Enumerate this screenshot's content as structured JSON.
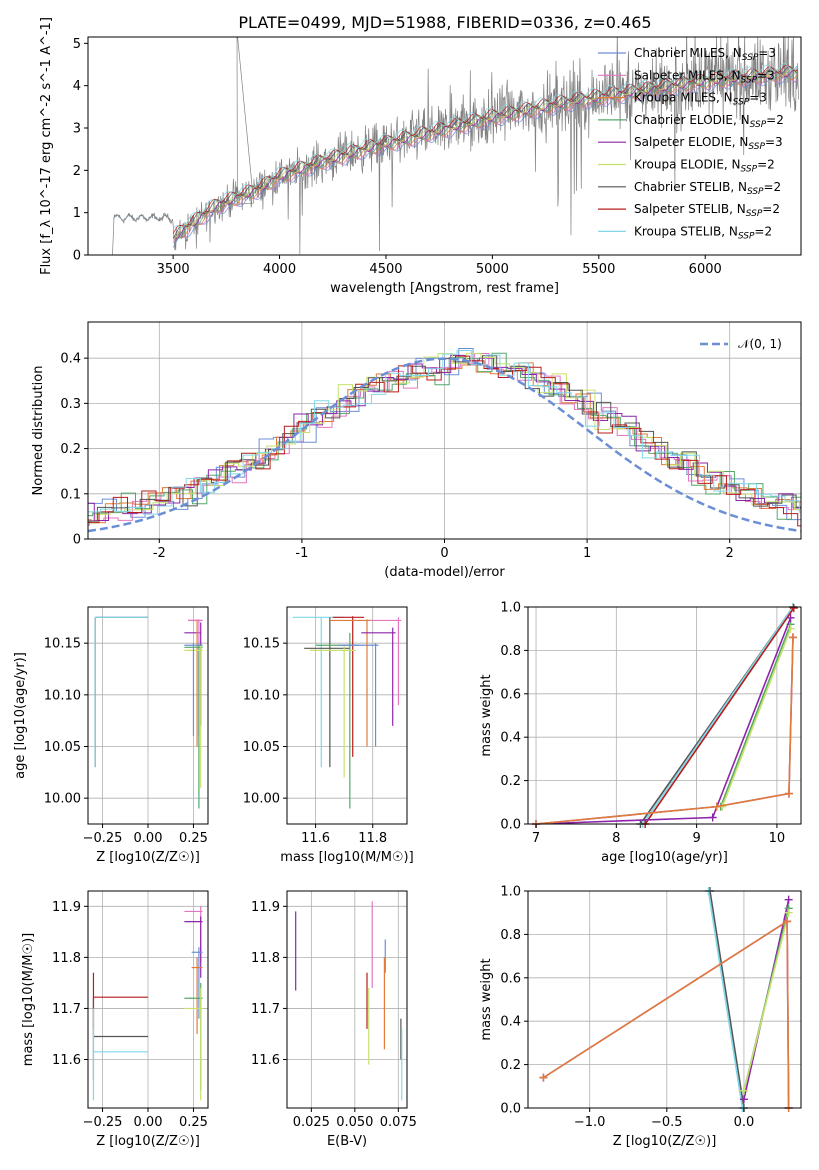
{
  "title": "PLATE=0499, MJD=51988, FIBERID=0336, z=0.465",
  "colors": {
    "Chabrier MILES": "#6b8fd6",
    "Salpeter MILES": "#e377c2",
    "Kroupa MILES": "#e07b39",
    "Chabrier ELODIE": "#55a868",
    "Salpeter ELODIE": "#8e24aa",
    "Kroupa ELODIE": "#c6e26b",
    "Chabrier STELIB": "#555555",
    "Salpeter STELIB": "#b71c1c",
    "Kroupa STELIB": "#80d8e8"
  },
  "chart_data": [
    {
      "type": "line",
      "title": "PLATE=0499, MJD=51988, FIBERID=0336, z=0.465",
      "xlabel": "wavelength [Angstrom, rest frame]",
      "ylabel": "Flux [f_λ 10^-17 erg cm^-2 s^-1 A^-1]",
      "xlim": [
        3100,
        6450
      ],
      "ylim": [
        0,
        5.15
      ],
      "xticks": [
        3500,
        4000,
        4500,
        5000,
        5500,
        6000
      ],
      "yticks": [
        0,
        1,
        2,
        3,
        4,
        5
      ],
      "data_color": "#808080",
      "legend_position": "top-right",
      "legend": [
        {
          "label": "Chabrier MILES, N",
          "sub": "SSP",
          "suffix": "=3"
        },
        {
          "label": "Salpeter MILES, N",
          "sub": "SSP",
          "suffix": "=3"
        },
        {
          "label": "Kroupa MILES, N",
          "sub": "SSP",
          "suffix": "=3"
        },
        {
          "label": "Chabrier ELODIE, N",
          "sub": "SSP",
          "suffix": "=2"
        },
        {
          "label": "Salpeter ELODIE, N",
          "sub": "SSP",
          "suffix": "=3"
        },
        {
          "label": "Kroupa ELODIE, N",
          "sub": "SSP",
          "suffix": "=2"
        },
        {
          "label": "Chabrier STELIB, N",
          "sub": "SSP",
          "suffix": "=2"
        },
        {
          "label": "Salpeter STELIB, N",
          "sub": "SSP",
          "suffix": "=2"
        },
        {
          "label": "Kroupa STELIB, N",
          "sub": "SSP",
          "suffix": "=2"
        }
      ],
      "model_trend": {
        "x": [
          3500,
          3700,
          3900,
          4000,
          4200,
          4400,
          4600,
          4800,
          5000,
          5200,
          5400,
          5600,
          5800,
          6000,
          6200,
          6400
        ],
        "y": [
          0.4,
          1.15,
          1.55,
          1.85,
          2.2,
          2.5,
          2.75,
          3.0,
          3.25,
          3.45,
          3.65,
          3.8,
          3.95,
          4.1,
          4.2,
          4.3
        ]
      }
    },
    {
      "type": "line",
      "xlabel": "(data-model)/error",
      "ylabel": "Normed distribution",
      "xlim": [
        -2.5,
        2.5
      ],
      "ylim": [
        0,
        0.48
      ],
      "xticks": [
        -2,
        -1,
        0,
        1,
        2
      ],
      "yticks": [
        0.0,
        0.1,
        0.2,
        0.3,
        0.4
      ],
      "grid": true,
      "legend_position": "top-right",
      "gaussian": {
        "label": "𝒩(0, 1)",
        "mean": 0,
        "sigma": 1,
        "color": "#6b8fd6"
      },
      "hist_bin_width": 0.1,
      "hist_center": 0.15,
      "hist_sigma": 1.1,
      "hist_amp": 0.36
    },
    {
      "type": "scatter",
      "xlabel": "Z [log10(Z/Z☉)]",
      "ylabel": "age [log10(age/yr)]",
      "xlim": [
        -0.33,
        0.33
      ],
      "ylim": [
        9.975,
        10.185
      ],
      "xticks": [
        -0.25,
        0.0,
        0.25
      ],
      "xticklabels": [
        "−0.25",
        "0.00",
        "0.25"
      ],
      "yticks": [
        10.0,
        10.05,
        10.1,
        10.15
      ],
      "yticklabels": [
        "10.00",
        "10.05",
        "10.10",
        "10.15"
      ],
      "points": [
        {
          "m": "Chabrier STELIB",
          "x": -0.29,
          "xlo": -0.29,
          "xhi": 0.0,
          "y": 10.175,
          "ylo": 10.03,
          "yhi": 10.175
        },
        {
          "m": "Kroupa STELIB",
          "x": -0.29,
          "xlo": -0.29,
          "xhi": 0.0,
          "y": 10.175,
          "ylo": 10.03,
          "yhi": 10.175
        },
        {
          "m": "Salpeter ELODIE",
          "x": 0.29,
          "xlo": 0.2,
          "xhi": 0.29,
          "y": 10.16,
          "ylo": 10.07,
          "yhi": 10.17
        },
        {
          "m": "Kroupa MILES",
          "x": 0.27,
          "xlo": 0.22,
          "xhi": 0.3,
          "y": 10.172,
          "ylo": 10.05,
          "yhi": 10.173
        },
        {
          "m": "Salpeter MILES",
          "x": 0.28,
          "xlo": 0.22,
          "xhi": 0.3,
          "y": 10.172,
          "ylo": 10.06,
          "yhi": 10.173
        },
        {
          "m": "Chabrier ELODIE",
          "x": 0.28,
          "xlo": 0.2,
          "xhi": 0.3,
          "y": 10.146,
          "ylo": 9.99,
          "yhi": 10.15
        },
        {
          "m": "Kroupa ELODIE",
          "x": 0.29,
          "xlo": 0.2,
          "xhi": 0.3,
          "y": 10.143,
          "ylo": 10.01,
          "yhi": 10.148
        },
        {
          "m": "Chabrier MILES",
          "x": 0.25,
          "xlo": 0.2,
          "xhi": 0.3,
          "y": 10.148,
          "ylo": 10.06,
          "yhi": 10.15
        }
      ]
    },
    {
      "type": "scatter",
      "xlabel": "mass [log10(M/M☉)]",
      "xlim": [
        11.5,
        11.92
      ],
      "ylim": [
        9.975,
        10.185
      ],
      "xticks": [
        11.6,
        11.8
      ],
      "xticklabels": [
        "11.6",
        "11.8"
      ],
      "yticks": [
        10.0,
        10.05,
        10.1,
        10.15
      ],
      "yticklabels": [
        "10.00",
        "10.05",
        "10.10",
        "10.15"
      ],
      "points": [
        {
          "m": "Kroupa STELIB",
          "x": 11.62,
          "xlo": 11.52,
          "xhi": 11.7,
          "y": 10.175,
          "ylo": 10.03,
          "yhi": 10.175
        },
        {
          "m": "Chabrier STELIB",
          "x": 11.65,
          "xlo": 11.56,
          "xhi": 11.72,
          "y": 10.145,
          "ylo": 10.03,
          "yhi": 10.175
        },
        {
          "m": "Salpeter STELIB",
          "x": 11.73,
          "xlo": 11.66,
          "xhi": 11.77,
          "y": 10.175,
          "ylo": 10.04,
          "yhi": 10.176
        },
        {
          "m": "Chabrier ELODIE",
          "x": 11.72,
          "xlo": 11.6,
          "xhi": 11.75,
          "y": 10.148,
          "ylo": 9.99,
          "yhi": 10.16
        },
        {
          "m": "Kroupa ELODIE",
          "x": 11.7,
          "xlo": 11.58,
          "xhi": 11.74,
          "y": 10.143,
          "ylo": 10.02,
          "yhi": 10.148
        },
        {
          "m": "Chabrier MILES",
          "x": 11.81,
          "xlo": 11.68,
          "xhi": 11.82,
          "y": 10.148,
          "ylo": 10.05,
          "yhi": 10.15
        },
        {
          "m": "Kroupa MILES",
          "x": 11.78,
          "xlo": 11.65,
          "xhi": 11.8,
          "y": 10.172,
          "ylo": 10.05,
          "yhi": 10.173
        },
        {
          "m": "Salpeter ELODIE",
          "x": 11.87,
          "xlo": 11.76,
          "xhi": 11.88,
          "y": 10.16,
          "ylo": 10.07,
          "yhi": 10.165
        },
        {
          "m": "Salpeter MILES",
          "x": 11.89,
          "xlo": 11.79,
          "xhi": 11.9,
          "y": 10.172,
          "ylo": 10.09,
          "yhi": 10.175
        }
      ]
    },
    {
      "type": "line",
      "xlabel": "age [log10(age/yr)]",
      "ylabel": "mass weight",
      "xlim": [
        6.9,
        10.3
      ],
      "ylim": [
        0,
        1.0
      ],
      "xticks": [
        7,
        8,
        9,
        10
      ],
      "yticks": [
        0.0,
        0.2,
        0.4,
        0.6,
        0.8,
        1.0
      ],
      "yticklabels": [
        "0.0",
        "0.2",
        "0.4",
        "0.6",
        "0.8",
        "1.0"
      ],
      "grid": true,
      "series": [
        {
          "m": "Chabrier STELIB",
          "x": [
            8.3,
            10.2
          ],
          "y": [
            0.0,
            1.0
          ]
        },
        {
          "m": "Kroupa STELIB",
          "x": [
            8.33,
            10.2
          ],
          "y": [
            0.0,
            1.0
          ]
        },
        {
          "m": "Salpeter STELIB",
          "x": [
            8.36,
            10.21
          ],
          "y": [
            0.0,
            0.995
          ]
        },
        {
          "m": "Chabrier ELODIE",
          "x": [
            9.3,
            10.17
          ],
          "y": [
            0.08,
            0.92
          ]
        },
        {
          "m": "Kroupa ELODIE",
          "x": [
            9.32,
            10.17
          ],
          "y": [
            0.08,
            0.9
          ]
        },
        {
          "m": "Salpeter ELODIE",
          "x": [
            7.0,
            9.2,
            10.17
          ],
          "y": [
            0.0,
            0.03,
            0.95
          ]
        },
        {
          "m": "Chabrier MILES",
          "x": [
            7.0,
            9.25,
            10.15,
            10.2
          ],
          "y": [
            0.0,
            0.08,
            0.14,
            0.86
          ]
        },
        {
          "m": "Salpeter MILES",
          "x": [
            7.0,
            9.25,
            10.15,
            10.2
          ],
          "y": [
            0.0,
            0.08,
            0.14,
            0.86
          ]
        },
        {
          "m": "Kroupa MILES",
          "x": [
            7.0,
            9.25,
            10.15,
            10.2
          ],
          "y": [
            0.0,
            0.08,
            0.14,
            0.86
          ]
        }
      ]
    },
    {
      "type": "scatter",
      "xlabel": "Z [log10(Z/Z☉)]",
      "ylabel": "mass [log10(M/M☉)]",
      "xlim": [
        -0.33,
        0.33
      ],
      "ylim": [
        11.505,
        11.93
      ],
      "xticks": [
        -0.25,
        0.0,
        0.25
      ],
      "xticklabels": [
        "−0.25",
        "0.00",
        "0.25"
      ],
      "yticks": [
        11.6,
        11.7,
        11.8,
        11.9
      ],
      "yticklabels": [
        "11.6",
        "11.7",
        "11.8",
        "11.9"
      ],
      "points": [
        {
          "m": "Salpeter STELIB",
          "x": -0.3,
          "xlo": -0.3,
          "xhi": 0.0,
          "y": 11.722,
          "ylo": 11.66,
          "yhi": 11.77
        },
        {
          "m": "Chabrier STELIB",
          "x": -0.3,
          "xlo": -0.3,
          "xhi": 0.0,
          "y": 11.645,
          "ylo": 11.56,
          "yhi": 11.72
        },
        {
          "m": "Kroupa STELIB",
          "x": -0.3,
          "xlo": -0.3,
          "xhi": 0.0,
          "y": 11.615,
          "ylo": 11.52,
          "yhi": 11.7
        },
        {
          "m": "Salpeter MILES",
          "x": 0.29,
          "xlo": 0.2,
          "xhi": 0.3,
          "y": 11.89,
          "ylo": 11.79,
          "yhi": 11.9
        },
        {
          "m": "Salpeter ELODIE",
          "x": 0.29,
          "xlo": 0.2,
          "xhi": 0.3,
          "y": 11.87,
          "ylo": 11.76,
          "yhi": 11.88
        },
        {
          "m": "Chabrier MILES",
          "x": 0.28,
          "xlo": 0.24,
          "xhi": 0.3,
          "y": 11.81,
          "ylo": 11.68,
          "yhi": 11.82
        },
        {
          "m": "Kroupa MILES",
          "x": 0.27,
          "xlo": 0.24,
          "xhi": 0.3,
          "y": 11.78,
          "ylo": 11.65,
          "yhi": 11.8
        },
        {
          "m": "Chabrier ELODIE",
          "x": 0.29,
          "xlo": 0.2,
          "xhi": 0.3,
          "y": 11.72,
          "ylo": 11.54,
          "yhi": 11.75
        },
        {
          "m": "Kroupa ELODIE",
          "x": 0.29,
          "xlo": 0.2,
          "xhi": 0.3,
          "y": 11.7,
          "ylo": 11.52,
          "yhi": 11.74
        }
      ]
    },
    {
      "type": "scatter",
      "xlabel": "E(B-V)",
      "xlim": [
        0.011,
        0.08
      ],
      "ylim": [
        11.505,
        11.93
      ],
      "xticks": [
        0.025,
        0.05,
        0.075
      ],
      "xticklabels": [
        "0.025",
        "0.050",
        "0.075"
      ],
      "yticks": [
        11.6,
        11.7,
        11.8,
        11.9
      ],
      "yticklabels": [
        "11.6",
        "11.7",
        "11.8",
        "11.9"
      ],
      "points": [
        {
          "m": "Salpeter ELODIE",
          "x": 0.016,
          "y": 11.81,
          "ylo": 11.735,
          "yhi": 11.89
        },
        {
          "m": "Salpeter STELIB",
          "x": 0.057,
          "y": 11.71,
          "ylo": 11.66,
          "yhi": 11.77
        },
        {
          "m": "Kroupa ELODIE",
          "x": 0.058,
          "y": 11.7,
          "ylo": 11.59,
          "yhi": 11.74
        },
        {
          "m": "Salpeter MILES",
          "x": 0.06,
          "y": 11.84,
          "ylo": 11.74,
          "yhi": 11.91
        },
        {
          "m": "Chabrier MILES",
          "x": 0.0675,
          "y": 11.8,
          "ylo": 11.77,
          "yhi": 11.835
        },
        {
          "m": "Kroupa MILES",
          "x": 0.067,
          "y": 11.72,
          "ylo": 11.62,
          "yhi": 11.8
        },
        {
          "m": "Chabrier STELIB",
          "x": 0.0765,
          "y": 11.64,
          "ylo": 11.6,
          "yhi": 11.68
        },
        {
          "m": "Kroupa STELIB",
          "x": 0.077,
          "y": 11.6,
          "ylo": 11.52,
          "yhi": 11.66
        }
      ]
    },
    {
      "type": "line",
      "xlabel": "Z [log10(Z/Z☉)]",
      "ylabel": "mass weight",
      "xlim": [
        -1.4,
        0.37
      ],
      "ylim": [
        0,
        1.0
      ],
      "xticks": [
        -1.0,
        -0.5,
        0.0
      ],
      "xticklabels": [
        "−1.0",
        "−0.5",
        "0.0"
      ],
      "yticks": [
        0.0,
        0.2,
        0.4,
        0.6,
        0.8,
        1.0
      ],
      "yticklabels": [
        "0.0",
        "0.2",
        "0.4",
        "0.6",
        "0.8",
        "1.0"
      ],
      "grid": true,
      "series": [
        {
          "m": "Chabrier STELIB",
          "x": [
            -0.22,
            0.0
          ],
          "y": [
            1.0,
            0.0
          ]
        },
        {
          "m": "Kroupa STELIB",
          "x": [
            -0.23,
            -0.01
          ],
          "y": [
            1.0,
            0.0
          ]
        },
        {
          "m": "Salpeter ELODIE",
          "x": [
            0.0,
            0.29
          ],
          "y": [
            0.04,
            0.96
          ]
        },
        {
          "m": "Chabrier ELODIE",
          "x": [
            0.0,
            0.29
          ],
          "y": [
            0.08,
            0.92
          ]
        },
        {
          "m": "Kroupa ELODIE",
          "x": [
            0.0,
            0.29
          ],
          "y": [
            0.08,
            0.9
          ]
        },
        {
          "m": "Chabrier MILES",
          "x": [
            -1.3,
            0.28,
            0.29
          ],
          "y": [
            0.14,
            0.86,
            0.0
          ]
        },
        {
          "m": "Salpeter MILES",
          "x": [
            -1.3,
            0.28,
            0.29
          ],
          "y": [
            0.14,
            0.86,
            0.0
          ]
        },
        {
          "m": "Kroupa MILES",
          "x": [
            -1.3,
            0.28,
            0.29
          ],
          "y": [
            0.14,
            0.86,
            0.0
          ]
        }
      ]
    }
  ]
}
